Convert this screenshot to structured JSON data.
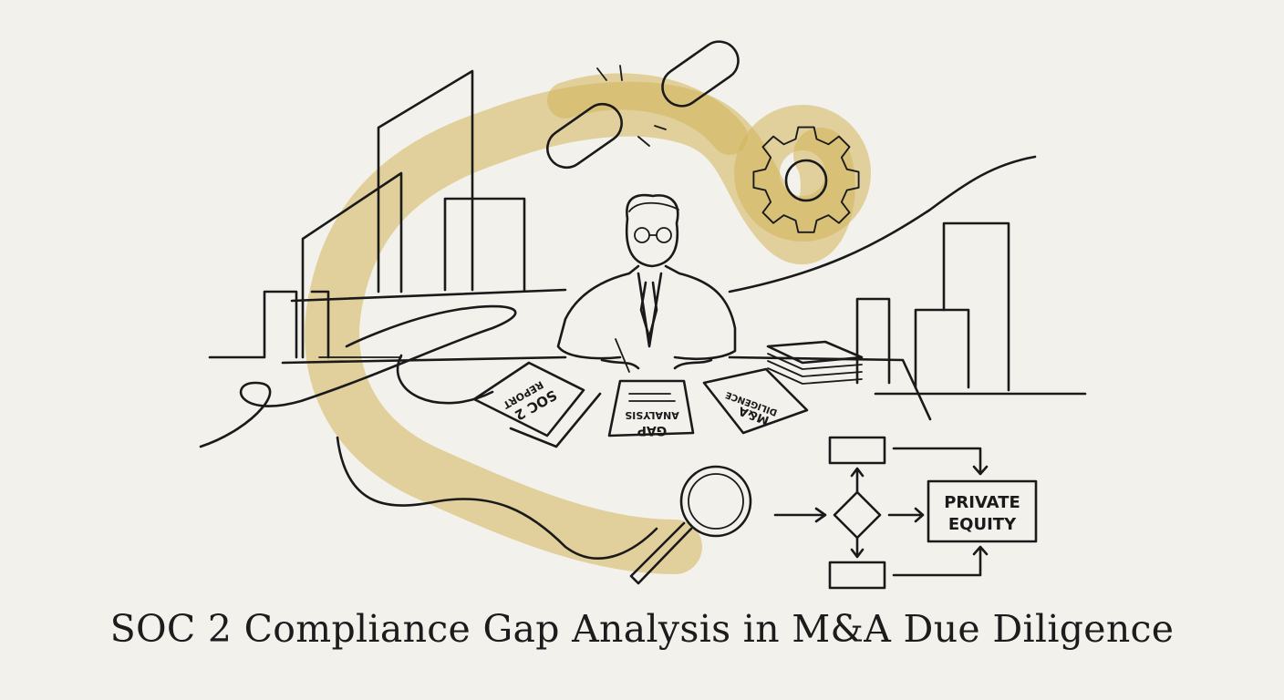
{
  "title": "SOC 2 Compliance Gap Analysis in M&A Due Diligence",
  "documents": {
    "soc2_line1": "SOC 2",
    "soc2_line2": "REPORT",
    "gap_line1": "GAP",
    "gap_line2": "ANALYSIS",
    "ma_line1": "M&A",
    "ma_line2": "DILIGENCE"
  },
  "flowchart": {
    "target_line1": "PRIVATE",
    "target_line2": "EQUITY"
  },
  "colors": {
    "background": "#f3f1ec",
    "ink": "#1a1a1a",
    "watercolor": "#d2b45a"
  }
}
